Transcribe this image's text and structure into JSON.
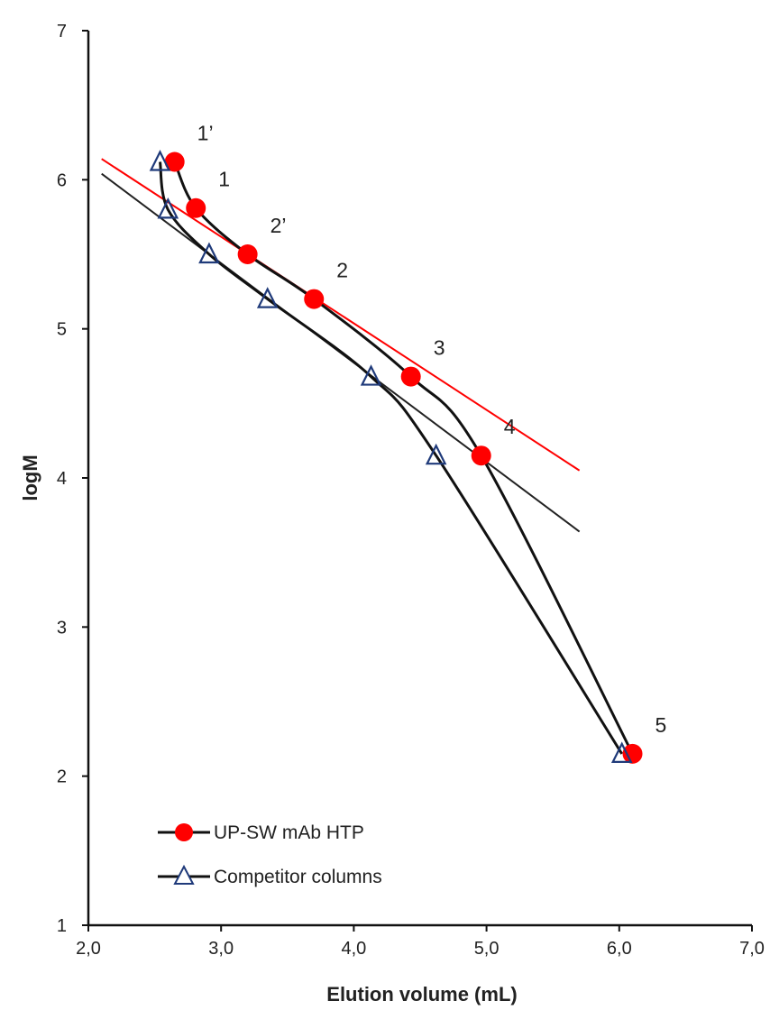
{
  "chart_data": {
    "type": "scatter",
    "title": "",
    "xlabel": "Elution volume (mL)",
    "ylabel": "logM",
    "xlim": [
      2.0,
      7.0
    ],
    "ylim": [
      1,
      7
    ],
    "x_tick_labels": [
      "2,0",
      "3,0",
      "4,0",
      "5,0",
      "6,0",
      "7,0"
    ],
    "y_tick_labels": [
      "1",
      "2",
      "3",
      "4",
      "5",
      "6",
      "7"
    ],
    "grid": false,
    "legend_position": "bottom-left",
    "series": [
      {
        "name": "UP-SW mAb HTP",
        "color": "#ff0000",
        "marker": "filled-circle",
        "x": [
          2.65,
          2.81,
          3.2,
          3.7,
          4.43,
          4.96,
          6.1
        ],
        "y": [
          6.12,
          5.81,
          5.5,
          5.2,
          4.68,
          4.15,
          2.15
        ],
        "point_labels": [
          "1’",
          "1",
          "2’",
          "2",
          "3",
          "4",
          "5"
        ]
      },
      {
        "name": "Competitor columns",
        "color": "#1f3a7a",
        "marker": "open-triangle",
        "x": [
          2.54,
          2.6,
          2.91,
          3.35,
          4.13,
          4.62,
          6.02
        ],
        "y": [
          6.12,
          5.8,
          5.5,
          5.2,
          4.68,
          4.15,
          2.15
        ],
        "point_labels": []
      }
    ],
    "trendlines": [
      {
        "name": "",
        "color": "#ff0000",
        "x": [
          2.1,
          5.7
        ],
        "y": [
          6.14,
          4.05
        ]
      },
      {
        "name": "",
        "color": "#222222",
        "x": [
          2.1,
          5.7
        ],
        "y": [
          6.04,
          3.64
        ]
      }
    ]
  }
}
